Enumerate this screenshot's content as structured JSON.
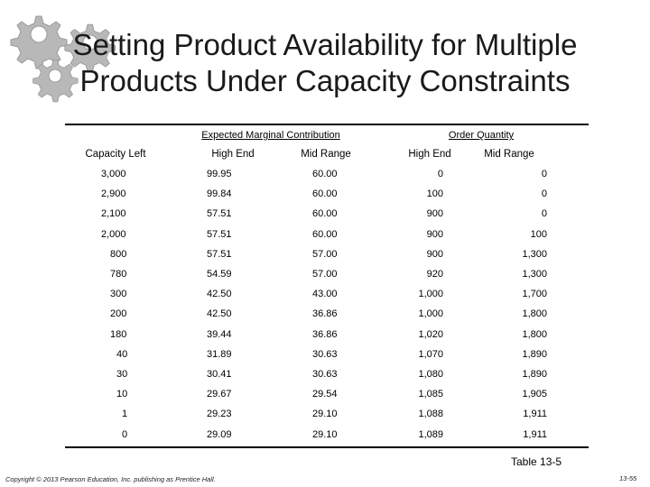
{
  "title_line1": "Setting Product Availability for Multiple",
  "title_line2": "Products Under Capacity Constraints",
  "group_headers": {
    "marginal": "Expected Marginal Contribution",
    "order": "Order Quantity"
  },
  "columns": [
    "Capacity Left",
    "High End",
    "Mid Range",
    "High End",
    "Mid Range"
  ],
  "rows": [
    [
      "3,000",
      "99.95",
      "60.00",
      "0",
      "0"
    ],
    [
      "2,900",
      "99.84",
      "60.00",
      "100",
      "0"
    ],
    [
      "2,100",
      "57.51",
      "60.00",
      "900",
      "0"
    ],
    [
      "2,000",
      "57.51",
      "60.00",
      "900",
      "100"
    ],
    [
      "800",
      "57.51",
      "57.00",
      "900",
      "1,300"
    ],
    [
      "780",
      "54.59",
      "57.00",
      "920",
      "1,300"
    ],
    [
      "300",
      "42.50",
      "43.00",
      "1,000",
      "1,700"
    ],
    [
      "200",
      "42.50",
      "36.86",
      "1,000",
      "1,800"
    ],
    [
      "180",
      "39.44",
      "36.86",
      "1,020",
      "1,800"
    ],
    [
      "40",
      "31.89",
      "30.63",
      "1,070",
      "1,890"
    ],
    [
      "30",
      "30.41",
      "30.63",
      "1,080",
      "1,890"
    ],
    [
      "10",
      "29.67",
      "29.54",
      "1,085",
      "1,905"
    ],
    [
      "1",
      "29.23",
      "29.10",
      "1,088",
      "1,911"
    ],
    [
      "0",
      "29.09",
      "29.10",
      "1,089",
      "1,911"
    ]
  ],
  "caption": "Table 13-5",
  "copyright": "Copyright © 2013 Pearson Education, Inc. publishing as Prentice Hall.",
  "page_number": "13-55",
  "gear_icon": "gear-icon",
  "gear_color": "#b0b0b0"
}
